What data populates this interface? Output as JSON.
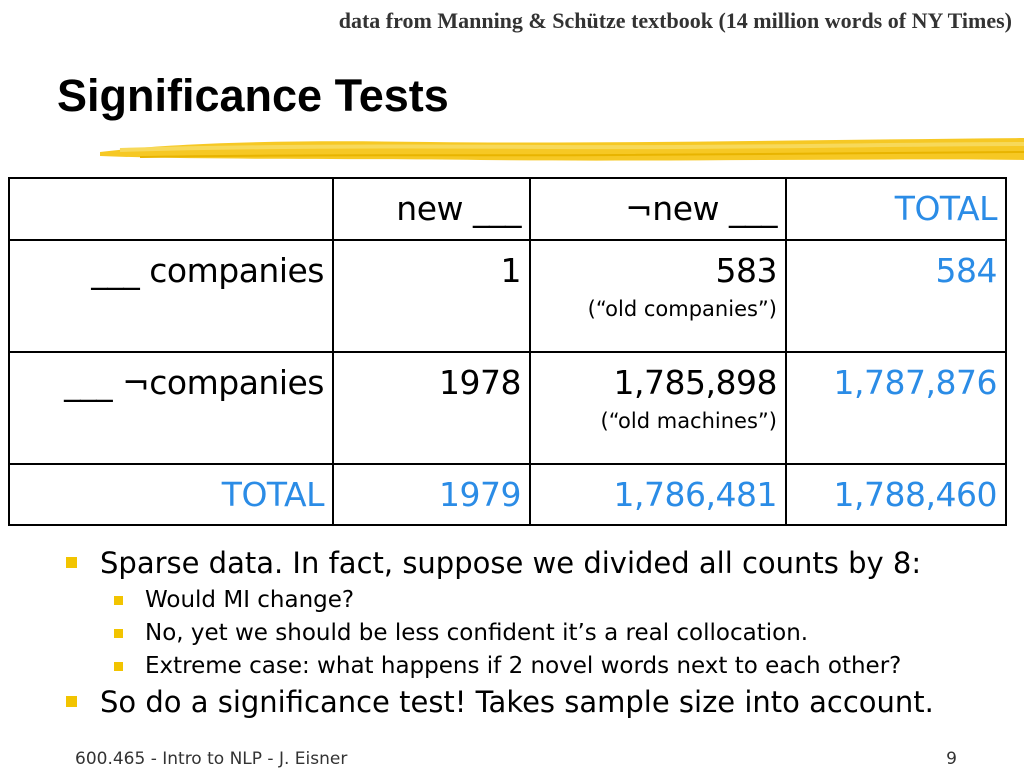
{
  "header": {
    "source_note": "data from Manning & Schütze textbook (14 million words of NY Times)",
    "title": "Significance Tests"
  },
  "table": {
    "header_row": [
      "",
      "new ___",
      "¬new ___",
      "TOTAL"
    ],
    "rows": [
      {
        "label": "___ companies",
        "c1": "1",
        "c2": "583",
        "c2_note": "(“old companies”)",
        "total": "584"
      },
      {
        "label": "___ ¬companies",
        "c1": "1978",
        "c2": "1,785,898",
        "c2_note": "(“old machines”)",
        "total": "1,787,876"
      },
      {
        "label": "TOTAL",
        "c1": "1979",
        "c2": "1,786,481",
        "total": "1,788,460"
      }
    ],
    "total_color": "#2b8ce6"
  },
  "bullets": [
    {
      "level": 1,
      "text": "Sparse data.  In fact, suppose we divided all counts by 8:"
    },
    {
      "level": 2,
      "text": "Would MI change?"
    },
    {
      "level": 2,
      "text": "No, yet we should be less confident it’s a real collocation."
    },
    {
      "level": 2,
      "text": "Extreme case: what happens if 2 novel words next to each other?"
    },
    {
      "level": 1,
      "text": "So do a significance test!  Takes sample size into account."
    }
  ],
  "bullet_color": "#f2c400",
  "footer": {
    "left": "600.465 - Intro to NLP - J. Eisner",
    "page_number": "9"
  }
}
